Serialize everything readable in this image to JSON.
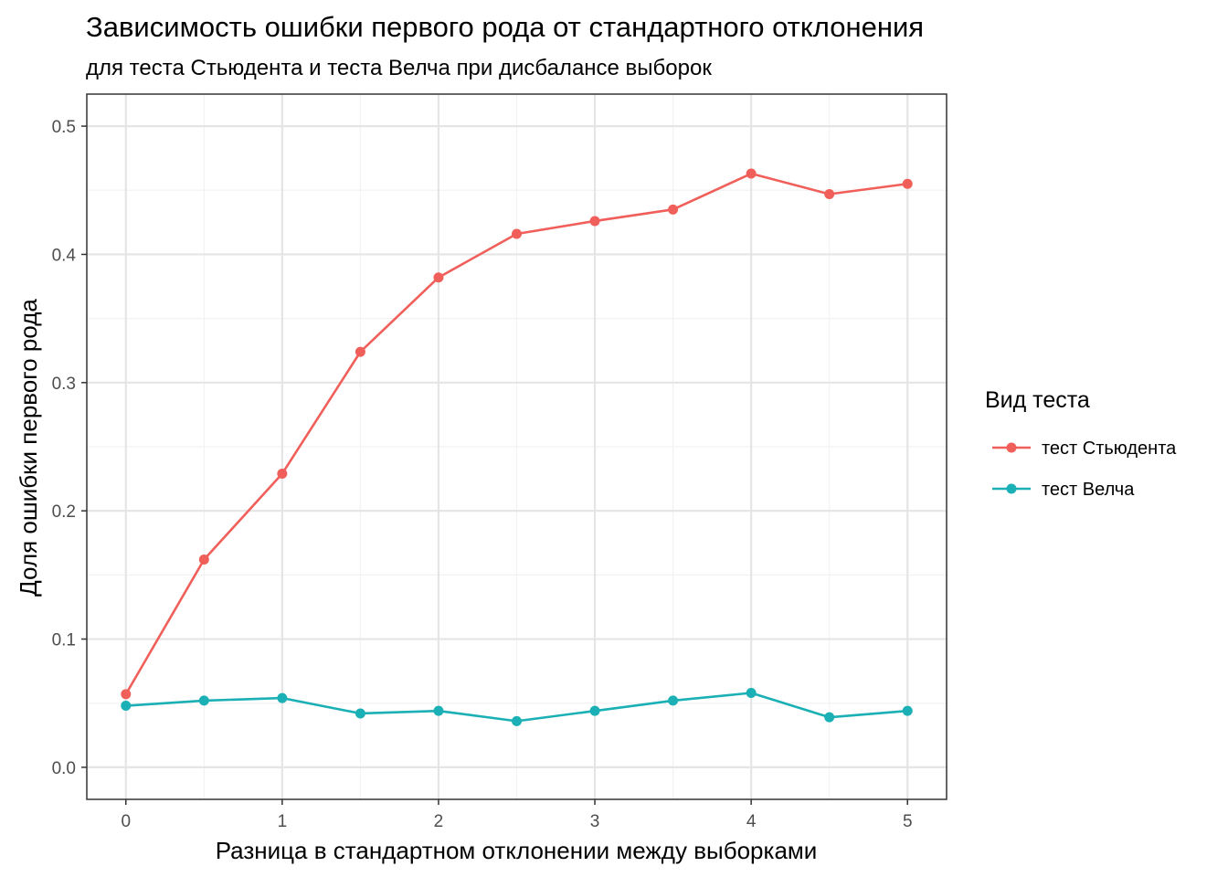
{
  "chart_data": {
    "type": "line",
    "title": "Зависимость ошибки первого рода от стандартного отклонения",
    "subtitle": "для теста Стьюдента и теста Велча при дисбалансе выборок",
    "xlabel": "Разница в стандартном отклонении между выборками",
    "ylabel": "Доля ошибки первого рода",
    "x": [
      0,
      0.5,
      1,
      1.5,
      2,
      2.5,
      3,
      3.5,
      4,
      4.5,
      5
    ],
    "xlim": [
      -0.25,
      5.25
    ],
    "ylim": [
      -0.025,
      0.525
    ],
    "x_ticks": [
      0,
      1,
      2,
      3,
      4,
      5
    ],
    "y_ticks": [
      0.0,
      0.1,
      0.2,
      0.3,
      0.4,
      0.5
    ],
    "y_tick_labels": [
      "0.0",
      "0.1",
      "0.2",
      "0.3",
      "0.4",
      "0.5"
    ],
    "grid": true,
    "legend_title": "Вид теста",
    "legend_position": "right",
    "series": [
      {
        "name": "тест Стьюдента",
        "color": "#f05f5a",
        "values": [
          0.057,
          0.162,
          0.229,
          0.324,
          0.382,
          0.416,
          0.426,
          0.435,
          0.463,
          0.447,
          0.455
        ]
      },
      {
        "name": "тест Велча",
        "color": "#1ab0b5",
        "values": [
          0.048,
          0.052,
          0.054,
          0.042,
          0.044,
          0.036,
          0.044,
          0.052,
          0.058,
          0.039,
          0.044
        ]
      }
    ]
  }
}
